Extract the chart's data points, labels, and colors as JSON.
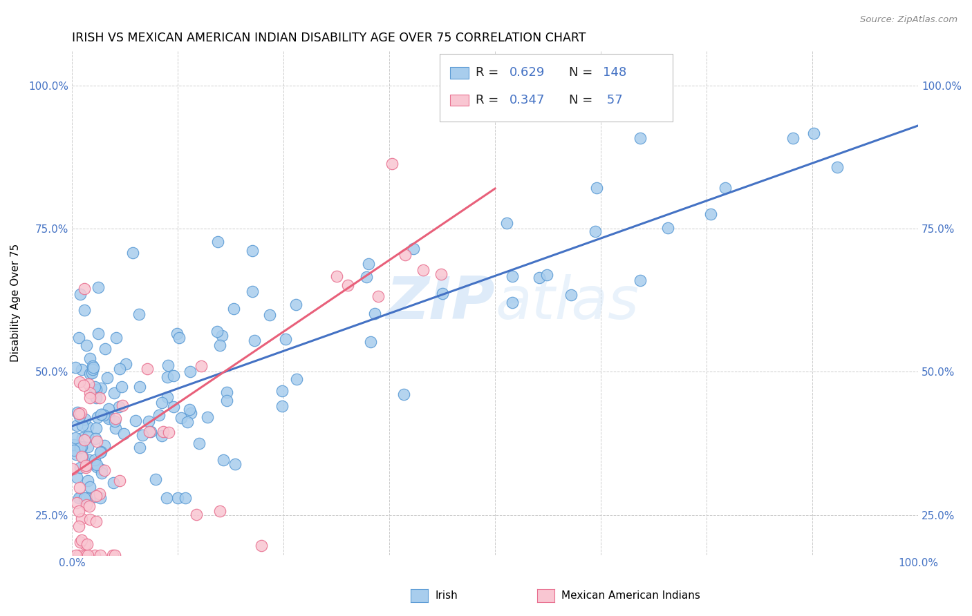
{
  "title": "IRISH VS MEXICAN AMERICAN INDIAN DISABILITY AGE OVER 75 CORRELATION CHART",
  "source": "Source: ZipAtlas.com",
  "ylabel": "Disability Age Over 75",
  "xlim": [
    0.0,
    1.0
  ],
  "ylim": [
    0.18,
    1.06
  ],
  "x_ticks": [
    0.0,
    0.125,
    0.25,
    0.375,
    0.5,
    0.625,
    0.75,
    0.875,
    1.0
  ],
  "y_ticks": [
    0.25,
    0.5,
    0.75,
    1.0
  ],
  "y_tick_labels": [
    "25.0%",
    "50.0%",
    "75.0%",
    "100.0%"
  ],
  "irish_R": 0.629,
  "irish_N": 148,
  "mexican_R": 0.347,
  "mexican_N": 57,
  "irish_color": "#A8CDED",
  "irish_edge_color": "#5B9BD5",
  "mexican_color": "#F9C6D2",
  "mexican_edge_color": "#E87090",
  "irish_line_color": "#4472C4",
  "mexican_line_color": "#E8607A",
  "tick_color": "#4472C4",
  "grid_color": "#CCCCCC",
  "watermark_color": "#C8DFF5",
  "legend_R_N_color": "#4472C4",
  "legend_R_label_color": "#222222"
}
